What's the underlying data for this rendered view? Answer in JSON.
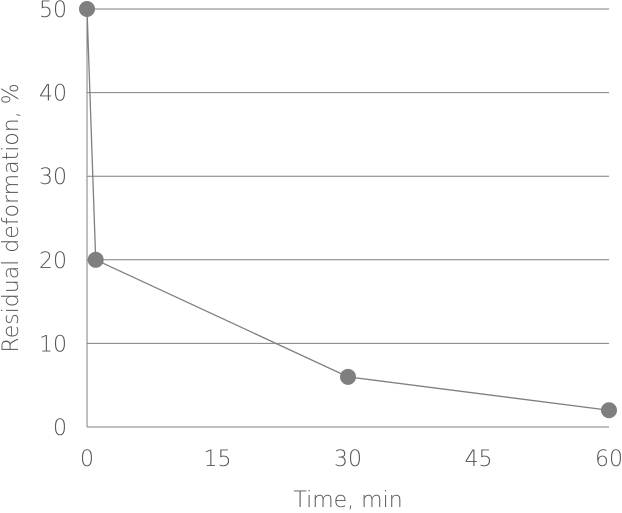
{
  "chart_data": {
    "type": "line",
    "xlabel": "Time, min",
    "ylabel": "Residual deformation, %",
    "x_ticks": [
      "0",
      "15",
      "30",
      "45",
      "60"
    ],
    "y_ticks": [
      "0",
      "10",
      "20",
      "30",
      "40",
      "50"
    ],
    "xlim": [
      0,
      60
    ],
    "ylim": [
      0,
      50
    ],
    "grid": "horizontal",
    "series": [
      {
        "x": [
          0,
          1,
          30,
          60
        ],
        "y": [
          50,
          20,
          6,
          2
        ]
      }
    ],
    "colors": {
      "marker": "#7f7f7f",
      "line": "#7f7f7f",
      "grid": "#7f7f7f",
      "text": "#555555"
    }
  }
}
